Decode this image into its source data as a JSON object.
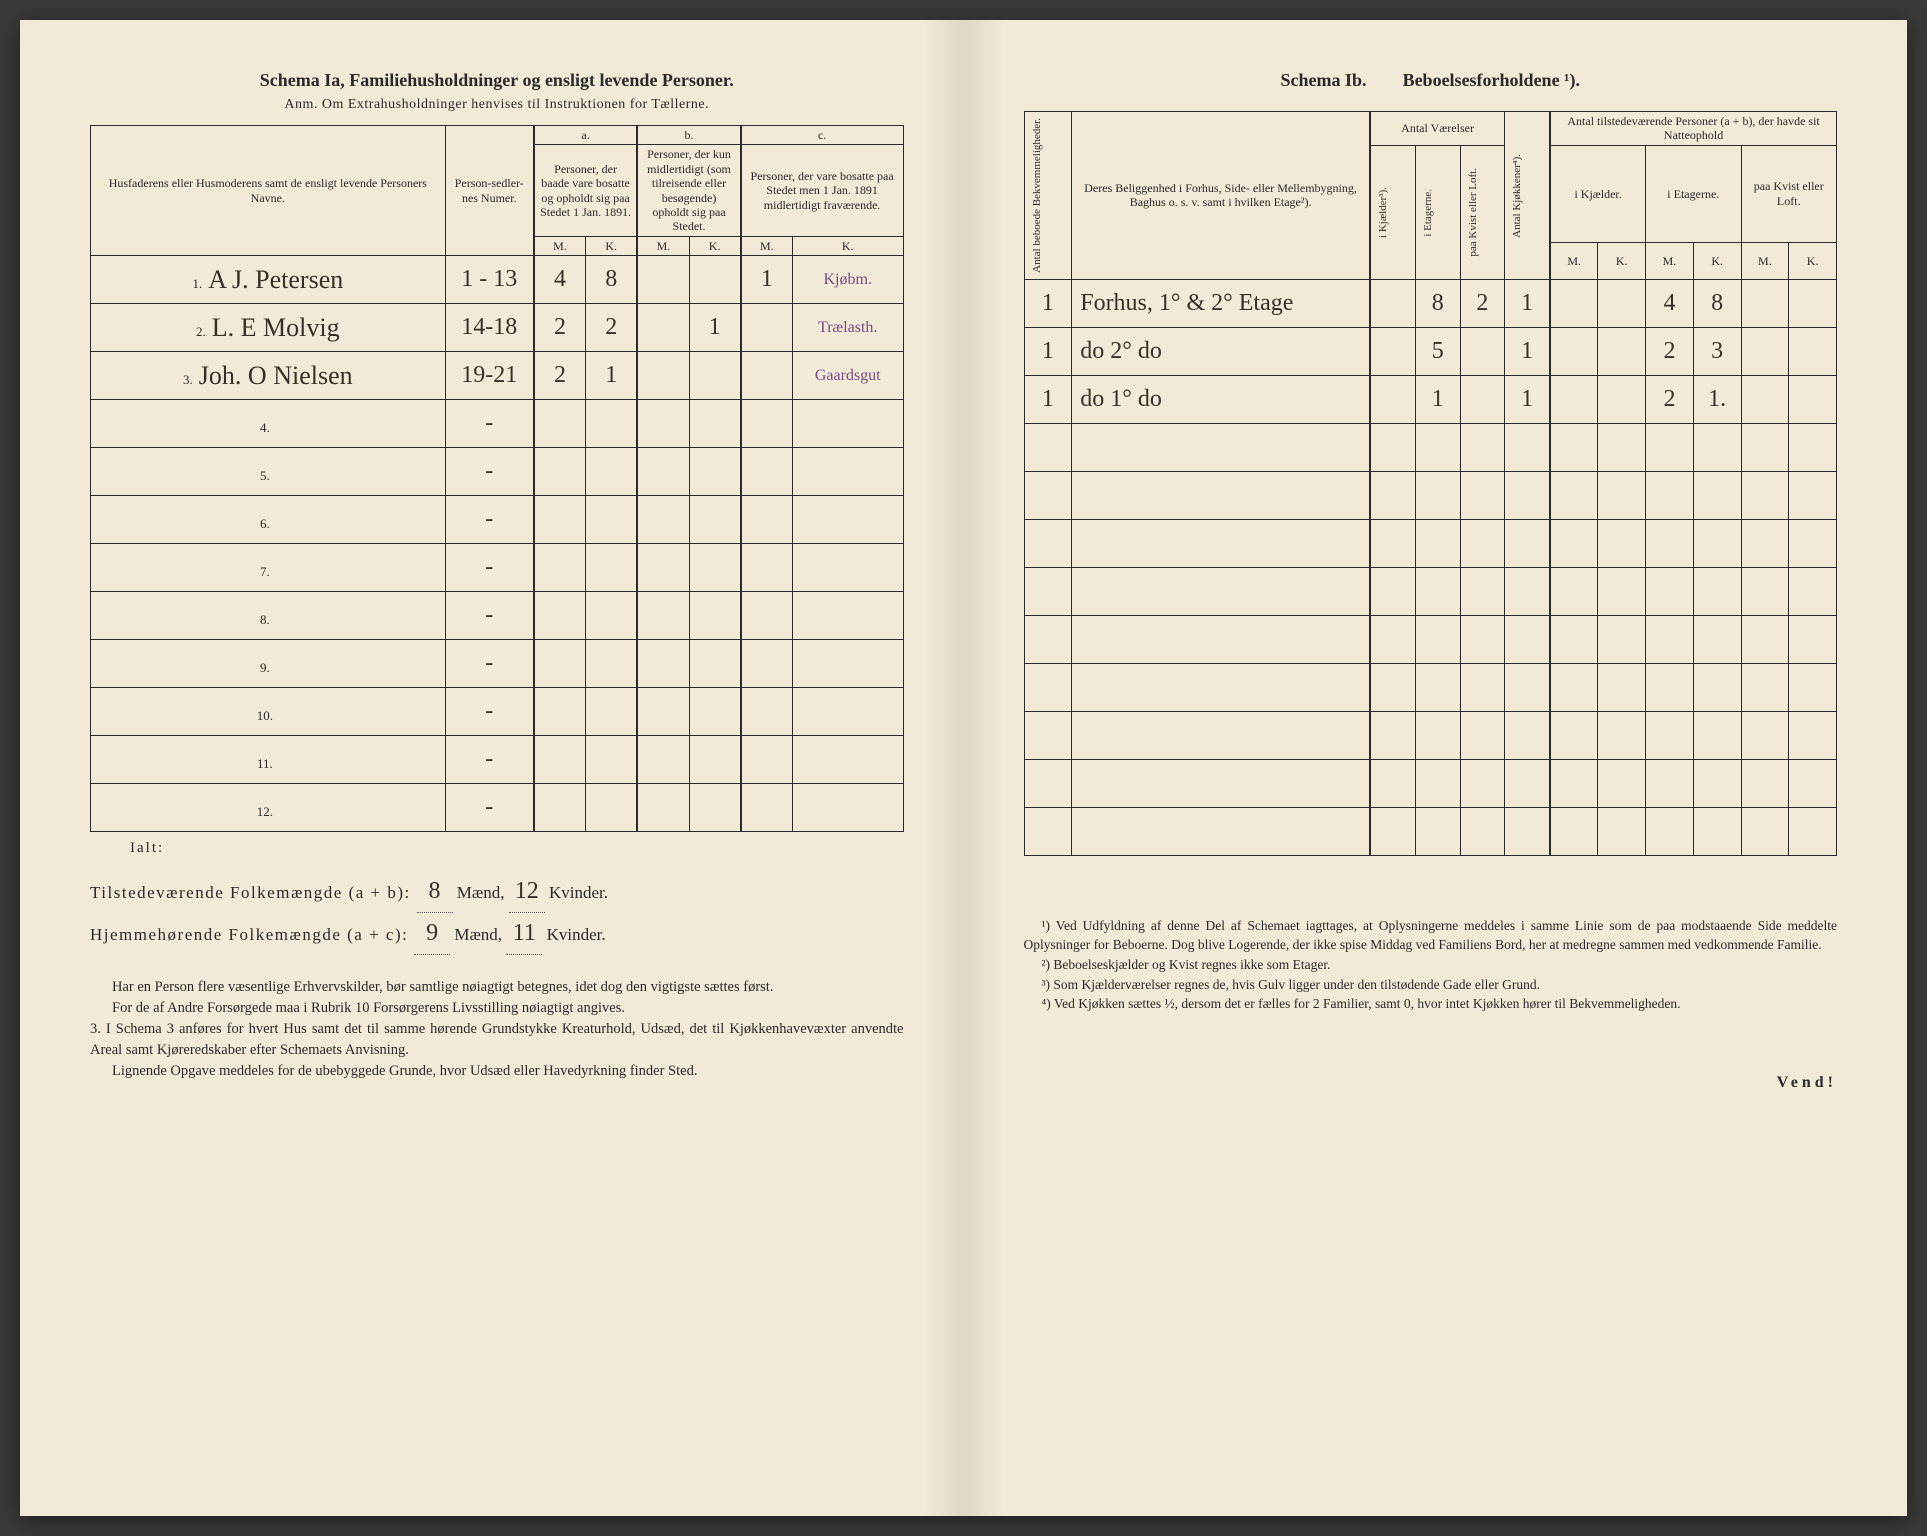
{
  "left": {
    "schema_label": "Schema Ia,",
    "schema_title": "Familiehusholdninger og ensligt levende Personer.",
    "anm": "Anm. Om Extrahusholdninger henvises til Instruktionen for Tællerne.",
    "headers": {
      "names": "Husfaderens eller Husmoderens samt de ensligt levende Personers Navne.",
      "numer": "Person-sedler-nes Numer.",
      "a_label": "a.",
      "a_text": "Personer, der baade vare bosatte og opholdt sig paa Stedet 1 Jan. 1891.",
      "b_label": "b.",
      "b_text": "Personer, der kun midlertidigt (som tilreisende eller besøgende) opholdt sig paa Stedet.",
      "c_label": "c.",
      "c_text": "Personer, der vare bosatte paa Stedet men 1 Jan. 1891 midlertidigt fraværende.",
      "M": "M.",
      "K": "K."
    },
    "rows": [
      {
        "n": "1.",
        "name": "A J. Petersen",
        "numer": "1 - 13",
        "aM": "4",
        "aK": "8",
        "bM": "",
        "bK": "",
        "cM": "1",
        "cK": "",
        "note": "Kjøbm."
      },
      {
        "n": "2.",
        "name": "L. E Molvig",
        "numer": "14-18",
        "aM": "2",
        "aK": "2",
        "bM": "",
        "bK": "1",
        "cM": "",
        "cK": "",
        "note": "Trælasth."
      },
      {
        "n": "3.",
        "name": "Joh. O Nielsen",
        "numer": "19-21",
        "aM": "2",
        "aK": "1",
        "bM": "",
        "bK": "",
        "cM": "",
        "cK": "",
        "note": "Gaardsgut"
      },
      {
        "n": "4.",
        "name": "",
        "numer": "-",
        "aM": "",
        "aK": "",
        "bM": "",
        "bK": "",
        "cM": "",
        "cK": "",
        "note": ""
      },
      {
        "n": "5.",
        "name": "",
        "numer": "-",
        "aM": "",
        "aK": "",
        "bM": "",
        "bK": "",
        "cM": "",
        "cK": "",
        "note": ""
      },
      {
        "n": "6.",
        "name": "",
        "numer": "-",
        "aM": "",
        "aK": "",
        "bM": "",
        "bK": "",
        "cM": "",
        "cK": "",
        "note": ""
      },
      {
        "n": "7.",
        "name": "",
        "numer": "-",
        "aM": "",
        "aK": "",
        "bM": "",
        "bK": "",
        "cM": "",
        "cK": "",
        "note": ""
      },
      {
        "n": "8.",
        "name": "",
        "numer": "-",
        "aM": "",
        "aK": "",
        "bM": "",
        "bK": "",
        "cM": "",
        "cK": "",
        "note": ""
      },
      {
        "n": "9.",
        "name": "",
        "numer": "-",
        "aM": "",
        "aK": "",
        "bM": "",
        "bK": "",
        "cM": "",
        "cK": "",
        "note": ""
      },
      {
        "n": "10.",
        "name": "",
        "numer": "-",
        "aM": "",
        "aK": "",
        "bM": "",
        "bK": "",
        "cM": "",
        "cK": "",
        "note": ""
      },
      {
        "n": "11.",
        "name": "",
        "numer": "-",
        "aM": "",
        "aK": "",
        "bM": "",
        "bK": "",
        "cM": "",
        "cK": "",
        "note": ""
      },
      {
        "n": "12.",
        "name": "",
        "numer": "-",
        "aM": "",
        "aK": "",
        "bM": "",
        "bK": "",
        "cM": "",
        "cK": "",
        "note": ""
      }
    ],
    "totals": {
      "ialt": "Ialt:",
      "line1_lbl": "Tilstedeværende Folkemængde (a + b): ",
      "line1_m": "8",
      "maend": "Mænd,",
      "line1_k": "12",
      "kvinder": "Kvinder.",
      "line2_lbl": "Hjemmehørende Folkemængde (a + c): ",
      "line2_m": "9",
      "line2_k": "11"
    },
    "notes": [
      "Har en Person flere væsentlige Erhvervskilder, bør samtlige nøiagtigt betegnes, idet dog den vigtigste sættes først.",
      "For de af Andre Forsørgede maa i Rubrik 10 Forsørgerens Livsstilling nøiagtigt angives.",
      "3. I Schema 3 anføres for hvert Hus samt det til samme hørende Grundstykke Kreaturhold, Udsæd, det til Kjøkkenhavevæxter anvendte Areal samt Kjøreredskaber efter Schemaets Anvisning.",
      "Lignende Opgave meddeles for de ubebyggede Grunde, hvor Udsæd eller Havedyrkning finder Sted."
    ]
  },
  "right": {
    "schema_label": "Schema Ib.",
    "schema_title": "Beboelsesforholdene ¹).",
    "headers": {
      "bekv": "Antal beboede Bekvemmeligheder.",
      "belig": "Deres Beliggenhed i Forhus, Side- eller Mellembygning, Baghus o. s. v. samt i hvilken Etage²).",
      "antal_vaer": "Antal Værelser",
      "kjael": "i Kjælder³).",
      "etag": "i Etagerne.",
      "kvist": "paa Kvist eller Loft.",
      "kjok": "Antal Kjøkkener⁴).",
      "tilst": "Antal tilstedeværende Personer (a + b), der havde sit Natteophold",
      "ik": "i Kjælder.",
      "ie": "i Etagerne.",
      "pk": "paa Kvist eller Loft.",
      "M": "M.",
      "K": "K."
    },
    "rows": [
      {
        "bekv": "1",
        "belig": "Forhus, 1° & 2° Etage",
        "kj": "",
        "et": "8",
        "kv": "2",
        "kk": "1",
        "ikM": "",
        "ikK": "",
        "ieM": "4",
        "ieK": "8",
        "pkM": "",
        "pkK": ""
      },
      {
        "bekv": "1",
        "belig": "do   2°   do",
        "kj": "",
        "et": "5",
        "kv": "",
        "kk": "1",
        "ikM": "",
        "ikK": "",
        "ieM": "2",
        "ieK": "3",
        "pkM": "",
        "pkK": ""
      },
      {
        "bekv": "1",
        "belig": "do   1°   do",
        "kj": "",
        "et": "1",
        "kv": "",
        "kk": "1",
        "ikM": "",
        "ikK": "",
        "ieM": "2",
        "ieK": "1.",
        "pkM": "",
        "pkK": ""
      },
      {
        "bekv": "",
        "belig": "",
        "kj": "",
        "et": "",
        "kv": "",
        "kk": "",
        "ikM": "",
        "ikK": "",
        "ieM": "",
        "ieK": "",
        "pkM": "",
        "pkK": ""
      },
      {
        "bekv": "",
        "belig": "",
        "kj": "",
        "et": "",
        "kv": "",
        "kk": "",
        "ikM": "",
        "ikK": "",
        "ieM": "",
        "ieK": "",
        "pkM": "",
        "pkK": ""
      },
      {
        "bekv": "",
        "belig": "",
        "kj": "",
        "et": "",
        "kv": "",
        "kk": "",
        "ikM": "",
        "ikK": "",
        "ieM": "",
        "ieK": "",
        "pkM": "",
        "pkK": ""
      },
      {
        "bekv": "",
        "belig": "",
        "kj": "",
        "et": "",
        "kv": "",
        "kk": "",
        "ikM": "",
        "ikK": "",
        "ieM": "",
        "ieK": "",
        "pkM": "",
        "pkK": ""
      },
      {
        "bekv": "",
        "belig": "",
        "kj": "",
        "et": "",
        "kv": "",
        "kk": "",
        "ikM": "",
        "ikK": "",
        "ieM": "",
        "ieK": "",
        "pkM": "",
        "pkK": ""
      },
      {
        "bekv": "",
        "belig": "",
        "kj": "",
        "et": "",
        "kv": "",
        "kk": "",
        "ikM": "",
        "ikK": "",
        "ieM": "",
        "ieK": "",
        "pkM": "",
        "pkK": ""
      },
      {
        "bekv": "",
        "belig": "",
        "kj": "",
        "et": "",
        "kv": "",
        "kk": "",
        "ikM": "",
        "ikK": "",
        "ieM": "",
        "ieK": "",
        "pkM": "",
        "pkK": ""
      },
      {
        "bekv": "",
        "belig": "",
        "kj": "",
        "et": "",
        "kv": "",
        "kk": "",
        "ikM": "",
        "ikK": "",
        "ieM": "",
        "ieK": "",
        "pkM": "",
        "pkK": ""
      },
      {
        "bekv": "",
        "belig": "",
        "kj": "",
        "et": "",
        "kv": "",
        "kk": "",
        "ikM": "",
        "ikK": "",
        "ieM": "",
        "ieK": "",
        "pkM": "",
        "pkK": ""
      }
    ],
    "footnotes": [
      "¹) Ved Udfyldning af denne Del af Schemaet iagttages, at Oplysningerne meddeles i samme Linie som de paa modstaaende Side meddelte Oplysninger for Beboerne. Dog blive Logerende, der ikke spise Middag ved Familiens Bord, her at medregne sammen med vedkommende Familie.",
      "²) Beboelseskjælder og Kvist regnes ikke som Etager.",
      "³) Som Kjælderværelser regnes de, hvis Gulv ligger under den tilstødende Gade eller Grund.",
      "⁴) Ved Kjøkken sættes ½, dersom det er fælles for 2 Familier, samt 0, hvor intet Kjøkken hører til Bekvemmeligheden."
    ],
    "vend": "Vend!"
  },
  "colors": {
    "paper": "#f0ead6",
    "ink": "#2a2a2a",
    "handwriting": "#383028",
    "purple_note": "#7a4a8a",
    "background": "#3a3a3a"
  }
}
